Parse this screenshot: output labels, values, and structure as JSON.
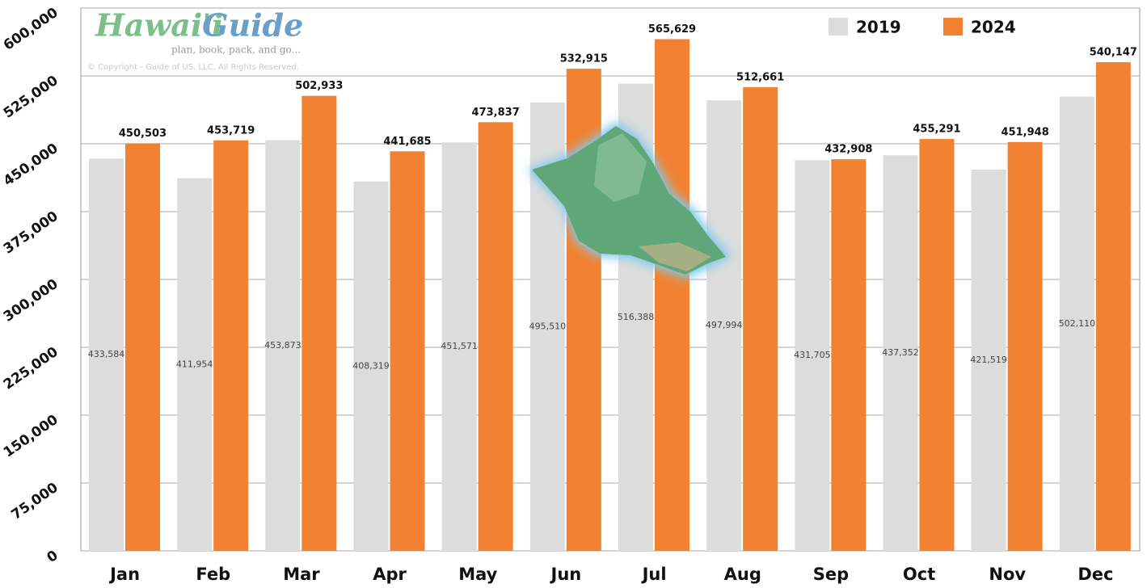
{
  "logo": {
    "brand_1": "Hawai'i",
    "brand_2": "Guide",
    "tagline": "plan, book, pack, and go...",
    "copyright": "© Copyright - Guide of US, LLC. All Rights Reserved."
  },
  "chart_data": {
    "type": "bar",
    "categories": [
      "Jan",
      "Feb",
      "Mar",
      "Apr",
      "May",
      "Jun",
      "Jul",
      "Aug",
      "Sep",
      "Oct",
      "Nov",
      "Dec"
    ],
    "series": [
      {
        "name": "2019",
        "color": "#dcdcdc",
        "values": [
          433584,
          411954,
          453873,
          408319,
          451571,
          495510,
          516388,
          497994,
          431705,
          437352,
          421519,
          502110
        ],
        "value_labels": [
          "433,584",
          "411,954",
          "453,873",
          "408,319",
          "451,571",
          "495,510",
          "516,388",
          "497,994",
          "431,705",
          "437,352",
          "421,519",
          "502,110"
        ]
      },
      {
        "name": "2024",
        "color": "#f28232",
        "values": [
          450503,
          453719,
          502933,
          441685,
          473837,
          532915,
          565629,
          512661,
          432908,
          455291,
          451948,
          540147
        ],
        "value_labels": [
          "450,503",
          "453,719",
          "502,933",
          "441,685",
          "473,837",
          "532,915",
          "565,629",
          "512,661",
          "432,908",
          "455,291",
          "451,948",
          "540,147"
        ]
      }
    ],
    "ylim": [
      0,
      600000
    ],
    "yticks": [
      0,
      {
        "value": 75000,
        "label": "75,000"
      },
      {
        "value": 150000,
        "label": "150,000"
      },
      {
        "value": 225000,
        "label": "225,000"
      },
      {
        "value": 300000,
        "label": "300,000"
      },
      {
        "value": 375000,
        "label": "375,000"
      },
      {
        "value": 450000,
        "label": "450,000"
      },
      {
        "value": 525000,
        "label": "525,000"
      },
      {
        "value": 600000,
        "label": "600,000"
      }
    ],
    "grid": true,
    "legend": "upper right"
  }
}
